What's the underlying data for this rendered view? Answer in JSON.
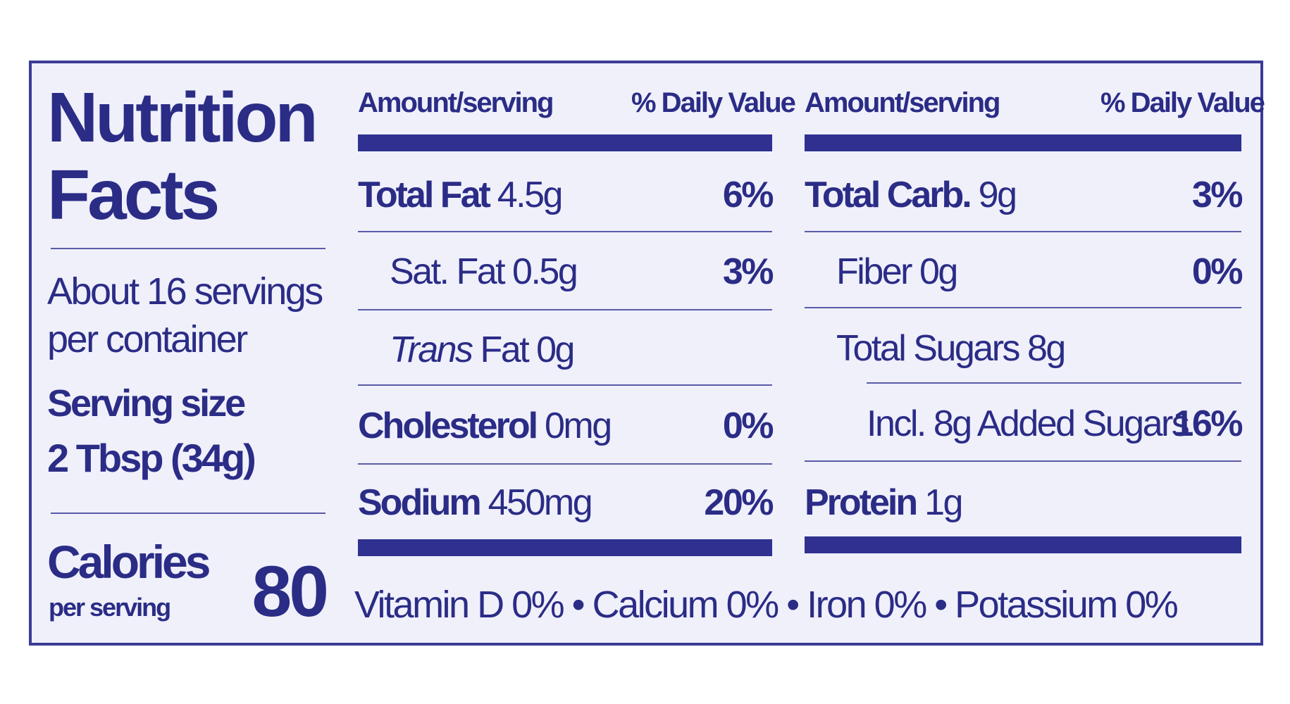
{
  "label": {
    "title": "Nutrition Facts",
    "servings": "About 16 servings per container",
    "serving_size_label": "Serving size",
    "serving_size": "2 Tbsp (34g)",
    "calories_label": "Calories",
    "calories_sublabel": "per serving",
    "calories": "80",
    "columns": [
      {
        "amount_header": "Amount/serving",
        "dv_header": "% Daily Value",
        "rows": [
          {
            "name": "Total Fat",
            "amount": "4.5g",
            "dv": "6%"
          },
          {
            "name": "Sat. Fat",
            "amount": "0.5g",
            "dv": "3%"
          },
          {
            "name_italic": "Trans",
            "name": "Fat",
            "amount": "0g"
          },
          {
            "name": "Cholesterol",
            "amount": "0mg",
            "dv": "0%"
          },
          {
            "name": "Sodium",
            "amount": "450mg",
            "dv": "20%"
          }
        ]
      },
      {
        "amount_header": "Amount/serving",
        "dv_header": "% Daily Value",
        "rows": [
          {
            "name": "Total Carb.",
            "amount": "9g",
            "dv": "3%"
          },
          {
            "name": "Fiber",
            "amount": "0g",
            "dv": "0%"
          },
          {
            "name": "Total Sugars",
            "amount": "8g"
          },
          {
            "name": "Incl. 8g Added Sugars",
            "dv": "16%"
          },
          {
            "name": "Protein",
            "amount": "1g"
          }
        ]
      }
    ],
    "footer": [
      "Vitamin D 0%",
      "Calcium 0%",
      "Iron 0%",
      "Potassium 0%"
    ]
  }
}
